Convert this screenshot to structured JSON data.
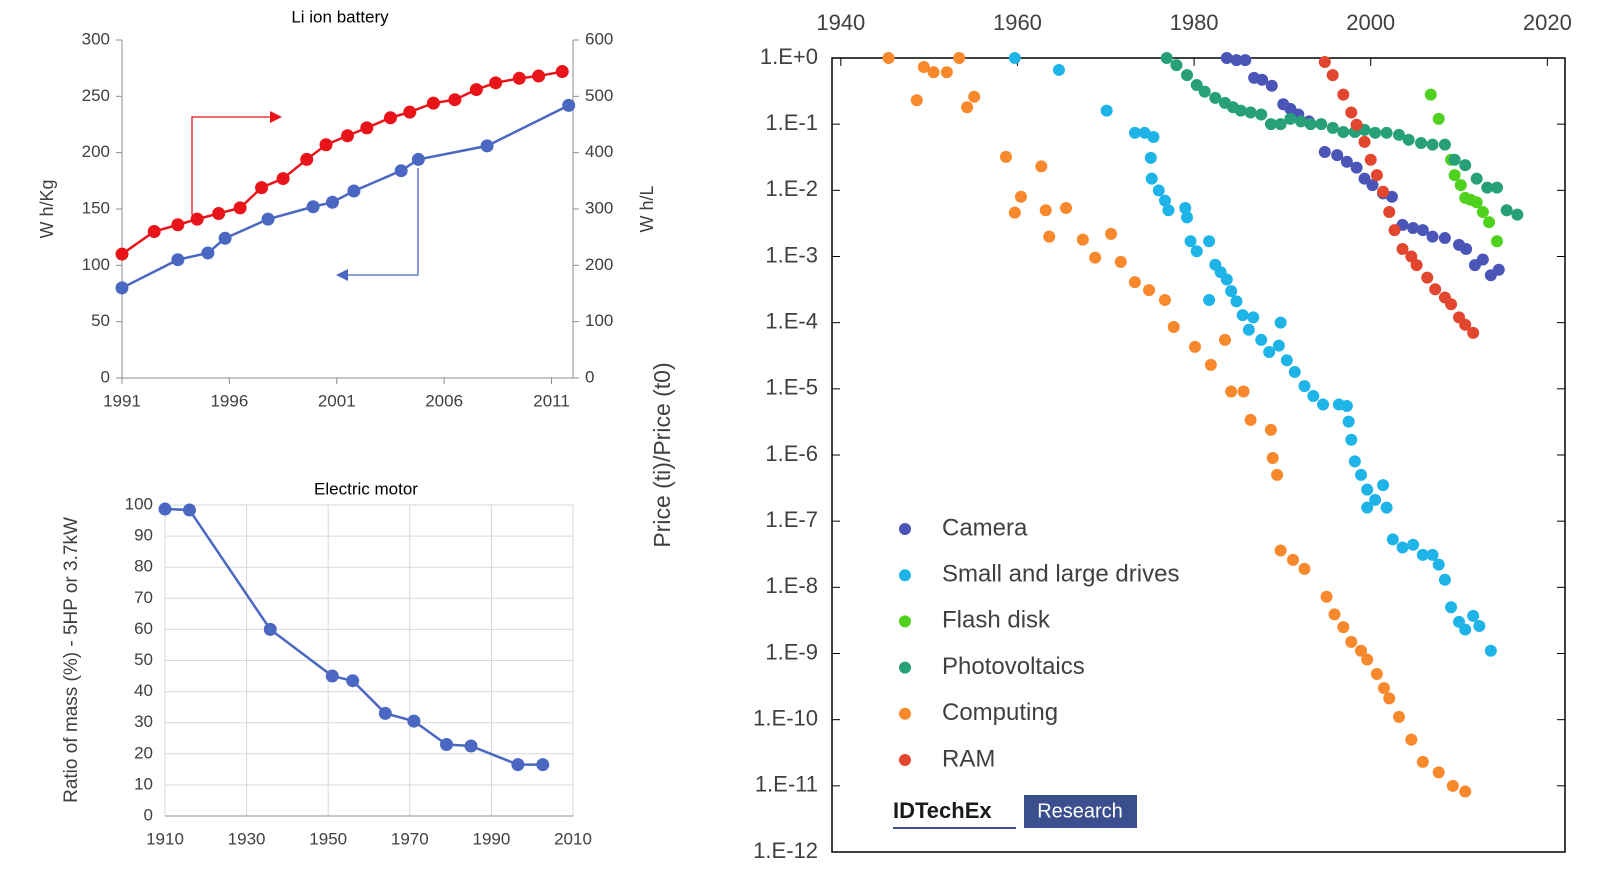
{
  "chart_data": [
    {
      "type": "line",
      "title": "Li ion battery",
      "ylabel": "W h/Kg",
      "y2label": "W h/L",
      "xlim": [
        1991,
        2012
      ],
      "xticks": [
        1991,
        1996,
        2001,
        2006,
        2011
      ],
      "ylim": [
        0,
        300
      ],
      "yticks": [
        0,
        50,
        100,
        150,
        200,
        250,
        300
      ],
      "y2lim": [
        0,
        600
      ],
      "y2ticks": [
        0,
        100,
        200,
        300,
        400,
        500,
        600
      ],
      "grid": false,
      "series": [
        {
          "color": "#4a67c1",
          "x": [
            1991,
            1993.6,
            1995,
            1995.8,
            1997.8,
            1999.9,
            2000.8,
            2001.8,
            2004,
            2004.8,
            2008,
            2011.8
          ],
          "values": [
            80,
            105,
            111,
            124,
            141,
            152,
            156,
            166,
            184,
            194,
            206,
            242
          ]
        },
        {
          "color": "#e8141a",
          "axis": "y2",
          "x": [
            1991,
            1992.5,
            1993.6,
            1994.5,
            1995.5,
            1996.5,
            1997.5,
            1998.5,
            1999.6,
            2000.5,
            2001.5,
            2002.4,
            2003.5,
            2004.4,
            2005.5,
            2006.5,
            2007.5,
            2008.4,
            2009.5,
            2010.4,
            2011.5
          ],
          "values": [
            220,
            260,
            272,
            282,
            292,
            302,
            338,
            354,
            388,
            414,
            430,
            444,
            462,
            472,
            488,
            494,
            512,
            524,
            532,
            536,
            544
          ]
        }
      ]
    },
    {
      "type": "line",
      "title": "Electric motor",
      "ylabel": "Ratio of mass (%) - 5HP or 3.7kW",
      "xlim": [
        1910,
        2010
      ],
      "xticks": [
        1910,
        1930,
        1950,
        1970,
        1990,
        2010
      ],
      "ylim": [
        0,
        100
      ],
      "yticks": [
        0,
        10,
        20,
        30,
        40,
        50,
        60,
        70,
        80,
        90,
        100
      ],
      "grid": true,
      "series": [
        {
          "color": "#4a67c1",
          "x": [
            1910,
            1916,
            1935.8,
            1951,
            1956,
            1964,
            1971,
            1979,
            1985,
            1996.5,
            2002.6
          ],
          "values": [
            98.7,
            98.4,
            60,
            45,
            43.5,
            33,
            30.5,
            23,
            22.5,
            16.5,
            16.5
          ]
        }
      ]
    },
    {
      "type": "scatter",
      "ylabel": "Price (ti)/Price (t0)",
      "yscale": "log",
      "xaxis": "top",
      "legend": "lower left",
      "logo": {
        "name": "IDTechEx",
        "tag": "Research"
      },
      "xlim": [
        1939,
        2022
      ],
      "xticks": [
        1940,
        1960,
        1980,
        2000,
        2020
      ],
      "ylim": [
        1e-12,
        1
      ],
      "yticks": [
        {
          "value": 1,
          "label": "1.E+0"
        },
        {
          "value": 0.1,
          "label": "1.E-1"
        },
        {
          "value": 0.01,
          "label": "1.E-2"
        },
        {
          "value": 0.001,
          "label": "1.E-3"
        },
        {
          "value": 0.0001,
          "label": "1.E-4"
        },
        {
          "value": 1e-05,
          "label": "1.E-5"
        },
        {
          "value": 1e-06,
          "label": "1.E-6"
        },
        {
          "value": 1e-07,
          "label": "1.E-7"
        },
        {
          "value": 1e-08,
          "label": "1.E-8"
        },
        {
          "value": 1e-09,
          "label": "1.E-9"
        },
        {
          "value": 1e-10,
          "label": "1.E-10"
        },
        {
          "value": 1e-11,
          "label": "1.E-11"
        },
        {
          "value": 1e-12,
          "label": "1.E-12"
        }
      ],
      "series": [
        {
          "name": "Camera",
          "color": "#4b55b8",
          "x": [
            1983.7,
            1984.8,
            1985.8,
            1986.8,
            1987.7,
            1988.8,
            1990.1,
            1990.9,
            1991.8,
            1993.0,
            1994.8,
            1996.2,
            1997.3,
            1998.4,
            1999.3,
            2000.2,
            2001.4,
            2002.4,
            2003.6,
            2004.8,
            2005.9,
            2007.0,
            2008.4,
            2010.0,
            2010.8,
            2011.8,
            2012.7,
            2013.6,
            2014.5
          ],
          "values": [
            1,
            0.93,
            0.93,
            0.5,
            0.47,
            0.38,
            0.2,
            0.17,
            0.14,
            0.11,
            0.038,
            0.034,
            0.027,
            0.022,
            0.015,
            0.012,
            0.009,
            0.008,
            0.003,
            0.0027,
            0.0025,
            0.002,
            0.0019,
            0.0015,
            0.0013,
            0.00074,
            0.0009,
            0.00052,
            0.00063
          ]
        },
        {
          "name": "Small and large drives",
          "color": "#1fb4e8",
          "x": [
            1959.7,
            1964.7,
            1970.1,
            1973.3,
            1974.4,
            1975.4,
            1975.1,
            1975.2,
            1976.0,
            1976.7,
            1977.1,
            1979.0,
            1979.2,
            1979.6,
            1980.3,
            1981.7,
            1982.4,
            1983.0,
            1983.7,
            1984.2,
            1984.8,
            1981.7,
            1985.5,
            1986.2,
            1986.7,
            1987.6,
            1988.5,
            1989.8,
            1989.6,
            1990.5,
            1991.4,
            1992.5,
            1993.5,
            1994.6,
            1996.4,
            1997.3,
            1997.5,
            1997.8,
            1998.2,
            1998.9,
            1999.6,
            1999.6,
            2000.5,
            2001.4,
            2001.8,
            2002.5,
            2003.6,
            2004.8,
            2005.9,
            2007.0,
            2007.7,
            2008.4,
            2009.1,
            2010.0,
            2010.7,
            2011.6,
            2012.3,
            2013.6
          ],
          "values": [
            1,
            0.66,
            0.16,
            0.074,
            0.074,
            0.064,
            0.031,
            0.015,
            0.01,
            0.007,
            0.005,
            0.0054,
            0.0039,
            0.0017,
            0.0012,
            0.0017,
            0.00075,
            0.00058,
            0.00045,
            0.0003,
            0.00021,
            0.00022,
            0.00013,
            7.8e-05,
            0.00012,
            5.5e-05,
            3.6e-05,
            0.0001,
            4.5e-05,
            2.7e-05,
            1.8e-05,
            1.1e-05,
            7.8e-06,
            5.8e-06,
            5.8e-06,
            5.5e-06,
            3.2e-06,
            1.7e-06,
            8e-07,
            5e-07,
            3e-07,
            1.6e-07,
            2.1e-07,
            3.5e-07,
            1.6e-07,
            5.3e-08,
            4e-08,
            4.4e-08,
            3.1e-08,
            3.1e-08,
            2.2e-08,
            1.3e-08,
            5e-09,
            3e-09,
            2.3e-09,
            3.7e-09,
            2.6e-09,
            1.1e-09
          ]
        },
        {
          "name": "Flash disk",
          "color": "#4fd21e",
          "x": [
            2006.8,
            2007.7,
            2009.1,
            2009.5,
            2010.2,
            2010.7,
            2011.3,
            2012.0,
            2012.7,
            2013.4,
            2014.3
          ],
          "values": [
            0.28,
            0.12,
            0.029,
            0.017,
            0.012,
            0.0077,
            0.0072,
            0.0066,
            0.0047,
            0.0033,
            0.0017
          ]
        },
        {
          "name": "Photovoltaics",
          "color": "#27a07a",
          "x": [
            1976.9,
            1978.0,
            1979.2,
            1980.3,
            1981.2,
            1982.4,
            1983.5,
            1984.4,
            1985.3,
            1986.4,
            1987.6,
            1988.7,
            1989.8,
            1990.9,
            1992.1,
            1993.2,
            1994.4,
            1995.7,
            1996.9,
            1998.2,
            1999.3,
            2000.5,
            2001.8,
            2003.2,
            2004.3,
            2005.7,
            2007.0,
            2008.4,
            2009.5,
            2010.7,
            2012.0,
            2013.2,
            2014.3,
            2015.4,
            2016.6
          ],
          "values": [
            1,
            0.78,
            0.55,
            0.39,
            0.31,
            0.25,
            0.21,
            0.18,
            0.16,
            0.15,
            0.14,
            0.1,
            0.1,
            0.12,
            0.11,
            0.1,
            0.1,
            0.088,
            0.076,
            0.076,
            0.082,
            0.074,
            0.074,
            0.069,
            0.058,
            0.052,
            0.049,
            0.049,
            0.029,
            0.024,
            0.015,
            0.011,
            0.011,
            0.005,
            0.0043
          ]
        },
        {
          "name": "Computing",
          "color": "#f7882c",
          "x": [
            1945.4,
            1948.6,
            1949.4,
            1950.5,
            1952.0,
            1953.4,
            1955.1,
            1954.3,
            1958.7,
            1959.7,
            1960.4,
            1962.7,
            1963.2,
            1963.6,
            1965.5,
            1967.4,
            1968.8,
            1970.6,
            1971.7,
            1973.3,
            1974.9,
            1976.7,
            1977.7,
            1980.1,
            1981.9,
            1983.5,
            1984.2,
            1985.6,
            1986.4,
            1988.7,
            1988.9,
            1989.4,
            1989.8,
            1991.2,
            1992.5,
            1995.0,
            1995.9,
            1996.9,
            1997.8,
            1998.9,
            1999.6,
            2000.7,
            2001.5,
            2002.1,
            2003.2,
            2004.6,
            2005.9,
            2007.7,
            2009.3,
            2010.7
          ],
          "values": [
            1,
            0.23,
            0.73,
            0.61,
            0.61,
            1,
            0.26,
            0.18,
            0.032,
            0.0046,
            0.008,
            0.023,
            0.005,
            0.002,
            0.0054,
            0.0018,
            0.00096,
            0.0022,
            0.00083,
            0.00041,
            0.00031,
            0.00022,
            8.6e-05,
            4.3e-05,
            2.3e-05,
            5.5e-05,
            9.1e-06,
            9.1e-06,
            3.4e-06,
            2.4e-06,
            9e-07,
            5e-07,
            3.6e-08,
            2.6e-08,
            1.9e-08,
            7.2e-09,
            3.9e-09,
            2.5e-09,
            1.5e-09,
            1.1e-09,
            8.1e-10,
            4.9e-10,
            3e-10,
            2.1e-10,
            1.1e-10,
            5e-11,
            2.3e-11,
            1.6e-11,
            1e-11,
            8.2e-12
          ]
        },
        {
          "name": "RAM",
          "color": "#e2462e",
          "x": [
            1994.8,
            1995.7,
            1996.9,
            1997.8,
            1998.4,
            1999.3,
            2000.0,
            2000.7,
            2001.4,
            2002.1,
            2002.7,
            2003.6,
            2004.6,
            2005.2,
            2006.4,
            2007.3,
            2008.4,
            2009.1,
            2010.0,
            2010.7,
            2011.6
          ],
          "values": [
            0.87,
            0.55,
            0.28,
            0.15,
            0.098,
            0.054,
            0.029,
            0.017,
            0.0095,
            0.0047,
            0.0025,
            0.0013,
            0.001,
            0.00074,
            0.00048,
            0.00032,
            0.00024,
            0.00019,
            0.00012,
            9.3e-05,
            7e-05
          ]
        }
      ]
    }
  ]
}
